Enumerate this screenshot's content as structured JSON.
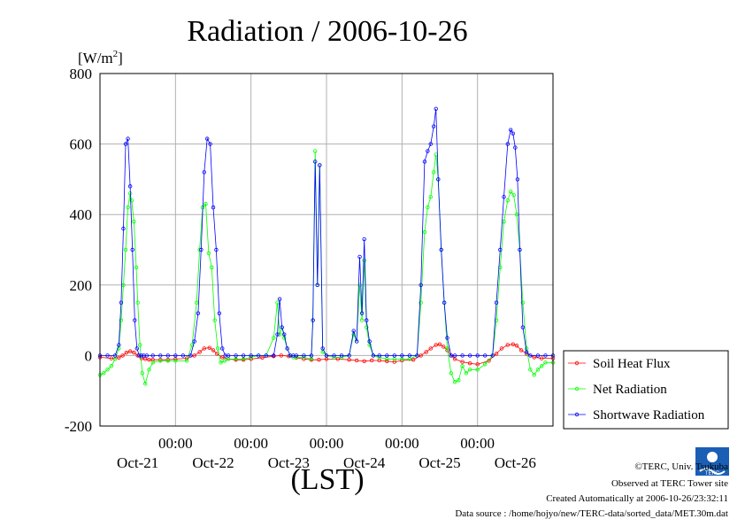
{
  "page": {
    "title": "Radiation / 2006-10-26",
    "credit": "©TERC, Univ. Tsukuba",
    "observed": "Observed at TERC Tower site",
    "created": "Created Automatically at 2006-10-26/23:32:11",
    "data_source": "Data source : /home/hojyo/new/TERC-data/sorted_data/MET.30m.dat",
    "logo_text": "TERC"
  },
  "chart_data": {
    "type": "line",
    "title": "Radiation / 2006-10-26",
    "ylabel_unit": "[W/m2]",
    "ylim": [
      -200,
      800
    ],
    "yticks": [
      -200,
      0,
      200,
      400,
      600,
      800
    ],
    "xlim": [
      0,
      6
    ],
    "xlabel": "(LST)",
    "xtick_positions": [
      1,
      2,
      3,
      4,
      5
    ],
    "xtick_time_labels": [
      "00:00",
      "00:00",
      "00:00",
      "00:00",
      "00:00"
    ],
    "day_label_positions": [
      0.5,
      1.5,
      2.5,
      3.5,
      4.5,
      5.5
    ],
    "day_labels": [
      "Oct-21",
      "Oct-22",
      "Oct-23",
      "Oct-24",
      "Oct-25",
      "Oct-26"
    ],
    "grid": true,
    "legend_position": "right",
    "x_unit": "days since start of Oct-21 (LST)",
    "series": [
      {
        "name": "Soil Heat Flux",
        "color": "#ff0000",
        "x": [
          0,
          0.15,
          0.25,
          0.3,
          0.35,
          0.4,
          0.45,
          0.5,
          0.55,
          0.6,
          0.65,
          0.7,
          0.8,
          0.9,
          1,
          1.15,
          1.25,
          1.32,
          1.38,
          1.45,
          1.5,
          1.55,
          1.62,
          1.7,
          1.8,
          1.9,
          2,
          2.15,
          2.3,
          2.4,
          2.5,
          2.6,
          2.7,
          2.8,
          2.9,
          3,
          3.15,
          3.3,
          3.4,
          3.5,
          3.6,
          3.7,
          3.8,
          3.9,
          4,
          4.15,
          4.25,
          4.32,
          4.38,
          4.45,
          4.5,
          4.55,
          4.6,
          4.65,
          4.7,
          4.8,
          4.9,
          5,
          5.15,
          5.25,
          5.32,
          5.4,
          5.47,
          5.52,
          5.58,
          5.65,
          5.75,
          5.85,
          6
        ],
        "values": [
          -5,
          -8,
          -6,
          0,
          8,
          12,
          8,
          0,
          -8,
          -10,
          -12,
          -12,
          -12,
          -12,
          -10,
          -8,
          0,
          10,
          20,
          22,
          15,
          5,
          -5,
          -10,
          -12,
          -12,
          -10,
          -6,
          -2,
          0,
          -2,
          -6,
          -10,
          -12,
          -12,
          -10,
          -10,
          -12,
          -14,
          -16,
          -14,
          -14,
          -16,
          -18,
          -14,
          -12,
          0,
          10,
          20,
          30,
          32,
          25,
          15,
          0,
          -10,
          -18,
          -22,
          -25,
          -15,
          5,
          20,
          30,
          32,
          28,
          15,
          5,
          -5,
          -8,
          -8
        ]
      },
      {
        "name": "Net Radiation",
        "color": "#00ff00",
        "x": [
          0,
          0.05,
          0.1,
          0.15,
          0.2,
          0.25,
          0.28,
          0.31,
          0.34,
          0.37,
          0.4,
          0.42,
          0.45,
          0.48,
          0.5,
          0.53,
          0.56,
          0.6,
          0.65,
          0.7,
          0.8,
          0.9,
          1,
          1.15,
          1.22,
          1.28,
          1.32,
          1.36,
          1.4,
          1.44,
          1.48,
          1.52,
          1.56,
          1.6,
          1.65,
          1.7,
          1.8,
          1.9,
          2,
          2.1,
          2.2,
          2.3,
          2.35,
          2.38,
          2.41,
          2.44,
          2.48,
          2.52,
          2.56,
          2.6,
          2.7,
          2.8,
          2.82,
          2.85,
          2.88,
          2.91,
          2.95,
          3,
          3.1,
          3.2,
          3.3,
          3.36,
          3.4,
          3.44,
          3.47,
          3.5,
          3.53,
          3.57,
          3.62,
          3.7,
          3.8,
          3.9,
          4,
          4.1,
          4.2,
          4.25,
          4.3,
          4.34,
          4.38,
          4.42,
          4.45,
          4.48,
          4.52,
          4.56,
          4.6,
          4.65,
          4.7,
          4.75,
          4.8,
          4.85,
          4.9,
          5,
          5.1,
          5.2,
          5.25,
          5.3,
          5.35,
          5.4,
          5.44,
          5.48,
          5.52,
          5.56,
          5.6,
          5.65,
          5.7,
          5.75,
          5.8,
          5.85,
          5.9,
          6
        ],
        "values": [
          -55,
          -50,
          -40,
          -30,
          -10,
          20,
          100,
          200,
          300,
          420,
          460,
          440,
          380,
          250,
          150,
          30,
          -50,
          -80,
          -40,
          -20,
          -15,
          -15,
          -15,
          -15,
          30,
          150,
          300,
          420,
          430,
          290,
          250,
          100,
          20,
          -20,
          -15,
          -10,
          -10,
          -10,
          -5,
          0,
          0,
          50,
          150,
          60,
          80,
          50,
          20,
          0,
          -5,
          -5,
          -5,
          -10,
          100,
          580,
          200,
          540,
          10,
          0,
          -5,
          -5,
          0,
          60,
          40,
          200,
          100,
          270,
          80,
          30,
          0,
          -5,
          -10,
          -10,
          -10,
          -10,
          0,
          150,
          350,
          420,
          450,
          520,
          570,
          500,
          300,
          150,
          20,
          -50,
          -75,
          -70,
          -30,
          -50,
          -40,
          -40,
          -25,
          0,
          100,
          250,
          380,
          440,
          465,
          455,
          400,
          300,
          150,
          20,
          -40,
          -55,
          -40,
          -30,
          -20,
          -20
        ]
      },
      {
        "name": "Shortwave Radiation",
        "color": "#0000ff",
        "x": [
          0,
          0.1,
          0.2,
          0.25,
          0.28,
          0.31,
          0.34,
          0.37,
          0.4,
          0.43,
          0.46,
          0.49,
          0.52,
          0.55,
          0.58,
          0.62,
          0.7,
          0.8,
          0.9,
          1,
          1.1,
          1.2,
          1.25,
          1.3,
          1.34,
          1.38,
          1.42,
          1.46,
          1.5,
          1.54,
          1.58,
          1.62,
          1.66,
          1.7,
          1.8,
          1.9,
          2,
          2.1,
          2.2,
          2.3,
          2.35,
          2.38,
          2.41,
          2.44,
          2.48,
          2.52,
          2.56,
          2.6,
          2.7,
          2.8,
          2.82,
          2.85,
          2.88,
          2.91,
          2.95,
          3,
          3.1,
          3.2,
          3.3,
          3.36,
          3.4,
          3.44,
          3.47,
          3.5,
          3.53,
          3.57,
          3.62,
          3.7,
          3.8,
          3.9,
          4,
          4.1,
          4.2,
          4.25,
          4.3,
          4.34,
          4.38,
          4.42,
          4.45,
          4.48,
          4.52,
          4.56,
          4.6,
          4.65,
          4.7,
          4.8,
          4.9,
          5,
          5.1,
          5.2,
          5.25,
          5.3,
          5.35,
          5.4,
          5.44,
          5.47,
          5.5,
          5.53,
          5.56,
          5.6,
          5.65,
          5.7,
          5.8,
          5.9,
          6
        ],
        "values": [
          0,
          0,
          0,
          30,
          150,
          360,
          600,
          615,
          480,
          300,
          100,
          20,
          0,
          0,
          0,
          0,
          0,
          0,
          0,
          0,
          0,
          0,
          40,
          120,
          300,
          520,
          615,
          600,
          420,
          300,
          120,
          20,
          0,
          0,
          0,
          0,
          0,
          0,
          0,
          0,
          60,
          160,
          80,
          60,
          20,
          0,
          0,
          0,
          0,
          0,
          100,
          550,
          200,
          540,
          20,
          0,
          0,
          0,
          0,
          70,
          40,
          280,
          120,
          330,
          100,
          40,
          0,
          0,
          0,
          0,
          0,
          0,
          0,
          200,
          550,
          580,
          600,
          650,
          700,
          500,
          300,
          150,
          50,
          0,
          0,
          0,
          0,
          0,
          0,
          0,
          150,
          300,
          450,
          600,
          640,
          630,
          590,
          500,
          300,
          80,
          10,
          0,
          0,
          0,
          0
        ]
      }
    ]
  }
}
